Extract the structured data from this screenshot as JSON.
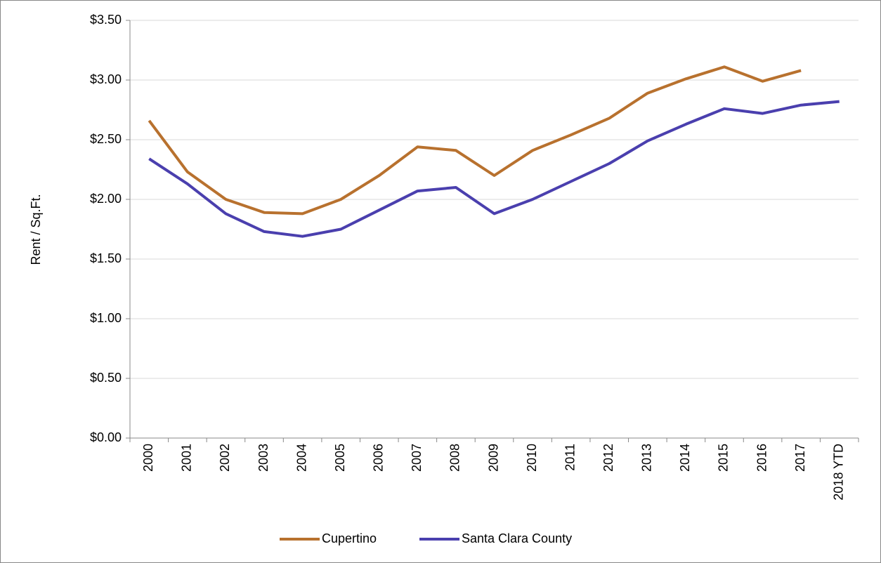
{
  "chart_data": {
    "type": "line",
    "y_label": "Rent / Sq.Ft.",
    "categories": [
      "2000",
      "2001",
      "2002",
      "2003",
      "2004",
      "2005",
      "2006",
      "2007",
      "2008",
      "2009",
      "2010",
      "2011",
      "2012",
      "2013",
      "2014",
      "2015",
      "2016",
      "2017",
      "2018 YTD"
    ],
    "series": [
      {
        "name": "Cupertino",
        "color": "#b8712e",
        "values": [
          2.66,
          2.23,
          2.0,
          1.89,
          1.88,
          2.0,
          2.2,
          2.44,
          2.41,
          2.2,
          2.41,
          2.54,
          2.68,
          2.89,
          3.01,
          3.11,
          2.99,
          3.08,
          null
        ]
      },
      {
        "name": "Santa Clara County",
        "color": "#4a3fae",
        "values": [
          2.34,
          2.13,
          1.88,
          1.73,
          1.69,
          1.75,
          1.91,
          2.07,
          2.1,
          1.88,
          2.0,
          2.15,
          2.3,
          2.49,
          2.63,
          2.76,
          2.72,
          2.79,
          2.82
        ]
      }
    ],
    "ylim": [
      0,
      3.5
    ],
    "yticks": [
      {
        "value": 0,
        "label": "$0.00"
      },
      {
        "value": 0.5,
        "label": "$0.50"
      },
      {
        "value": 1,
        "label": "$1.00"
      },
      {
        "value": 1.5,
        "label": "$1.50"
      },
      {
        "value": 2,
        "label": "$2.00"
      },
      {
        "value": 2.5,
        "label": "$2.50"
      },
      {
        "value": 3,
        "label": "$3.00"
      },
      {
        "value": 3.5,
        "label": "$3.50"
      }
    ],
    "grid": true,
    "legend": "bottom"
  }
}
